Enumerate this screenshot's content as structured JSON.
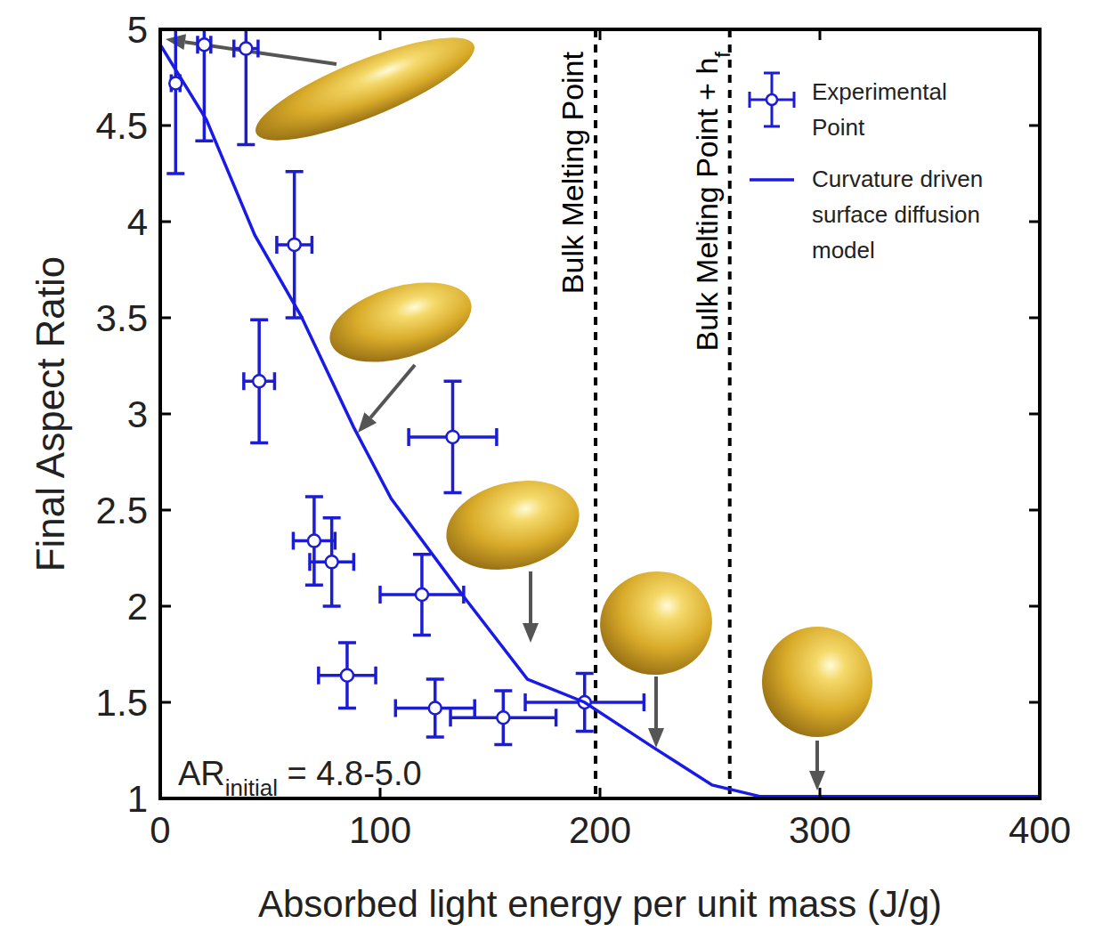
{
  "chart_data": {
    "type": "scatter",
    "x_label": "Absorbed light energy per unit mass (J/g)",
    "y_label": "Final Aspect Ratio",
    "xlim": [
      0,
      400
    ],
    "xticks": [
      0,
      100,
      200,
      300,
      400
    ],
    "ylim": [
      1,
      5
    ],
    "yticks": [
      1,
      1.5,
      2,
      2.5,
      3,
      3.5,
      4,
      4.5,
      5
    ],
    "grid": false,
    "legend": "upper right",
    "series": [
      {
        "name": "Experimental Point",
        "type": "scatter",
        "color": "#1c1cd4",
        "marker": "open-circle",
        "x": [
          7,
          20,
          39,
          61,
          45,
          133,
          70,
          78,
          119,
          85,
          125,
          156,
          193
        ],
        "values": [
          4.72,
          4.92,
          4.9,
          3.88,
          3.17,
          2.88,
          2.34,
          2.23,
          2.06,
          1.64,
          1.47,
          1.42,
          1.5
        ],
        "x_errors": [
          2,
          3,
          5.5,
          8,
          7,
          20,
          9.5,
          10,
          19,
          13,
          18,
          24,
          27
        ],
        "errors": [
          0.47,
          0.5,
          0.5,
          0.38,
          0.32,
          0.29,
          0.23,
          0.23,
          0.21,
          0.17,
          0.15,
          0.14,
          0.15
        ]
      },
      {
        "name": "Curvature driven surface diffusion model",
        "type": "line",
        "color": "#1a1ae6",
        "line_style": "solid",
        "x": [
          0,
          21,
          43,
          64,
          88,
          105,
          138,
          167,
          193,
          225,
          251,
          273,
          300,
          400
        ],
        "values": [
          4.92,
          4.53,
          3.93,
          3.51,
          2.93,
          2.56,
          2.05,
          1.62,
          1.5,
          1.26,
          1.07,
          1.01,
          1.01,
          1.01
        ]
      }
    ],
    "reference_lines": [
      {
        "x": 198,
        "label": "Bulk Melting Point",
        "line_style": "dashed"
      },
      {
        "x": 259,
        "label": "Bulk Melting Point + h",
        "label_subscript": "f",
        "line_style": "dashed"
      }
    ],
    "annotations": [
      {
        "text": "AR",
        "subscript": "initial",
        "after": " = 4.8-5.0"
      }
    ]
  }
}
